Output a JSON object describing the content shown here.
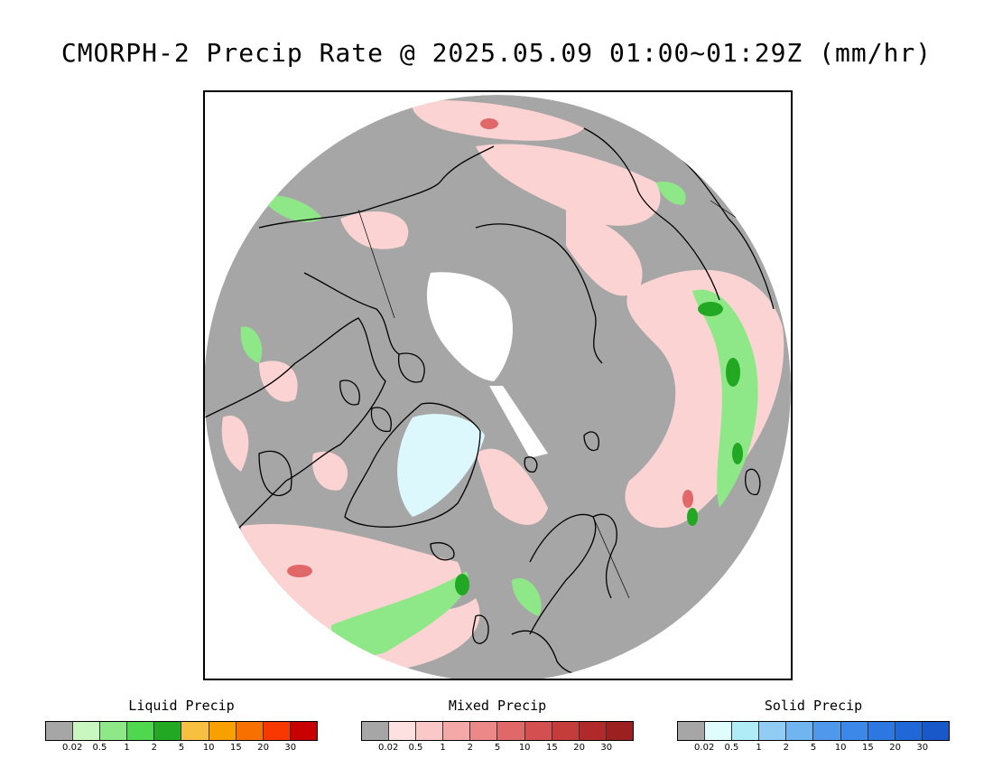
{
  "title": "CMORPH-2 Precip Rate @ 2025.05.09 01:00~01:29Z (mm/hr)",
  "map": {
    "projection": "north-polar-stereographic",
    "background_color": "#a6a6a6",
    "no_data_color": "#ffffff",
    "coastline_color": "#000000"
  },
  "legends": [
    {
      "title": "Liquid Precip",
      "colors": [
        "#a6a6a6",
        "#c8f8c0",
        "#8ee888",
        "#4fd84f",
        "#22a822",
        "#f8c040",
        "#f8a000",
        "#f87000",
        "#f83800",
        "#c80000"
      ],
      "ticks": [
        "0.02",
        "0.5",
        "1",
        "2",
        "5",
        "10",
        "15",
        "20",
        "30"
      ]
    },
    {
      "title": "Mixed Precip",
      "colors": [
        "#a6a6a6",
        "#fde0e0",
        "#fbc8c8",
        "#f4a8a8",
        "#ec8888",
        "#e06868",
        "#d45050",
        "#c43c3c",
        "#b02a2a",
        "#9c2020"
      ],
      "ticks": [
        "0.02",
        "0.5",
        "1",
        "2",
        "5",
        "10",
        "15",
        "20",
        "30"
      ]
    },
    {
      "title": "Solid Precip",
      "colors": [
        "#a6a6a6",
        "#e0fcfc",
        "#b0ecf8",
        "#90ccf4",
        "#70b4f0",
        "#5098ec",
        "#3c88e8",
        "#2c78e0",
        "#2068d8",
        "#1858c8"
      ],
      "ticks": [
        "0.02",
        "0.5",
        "1",
        "2",
        "5",
        "10",
        "15",
        "20",
        "30"
      ]
    }
  ]
}
